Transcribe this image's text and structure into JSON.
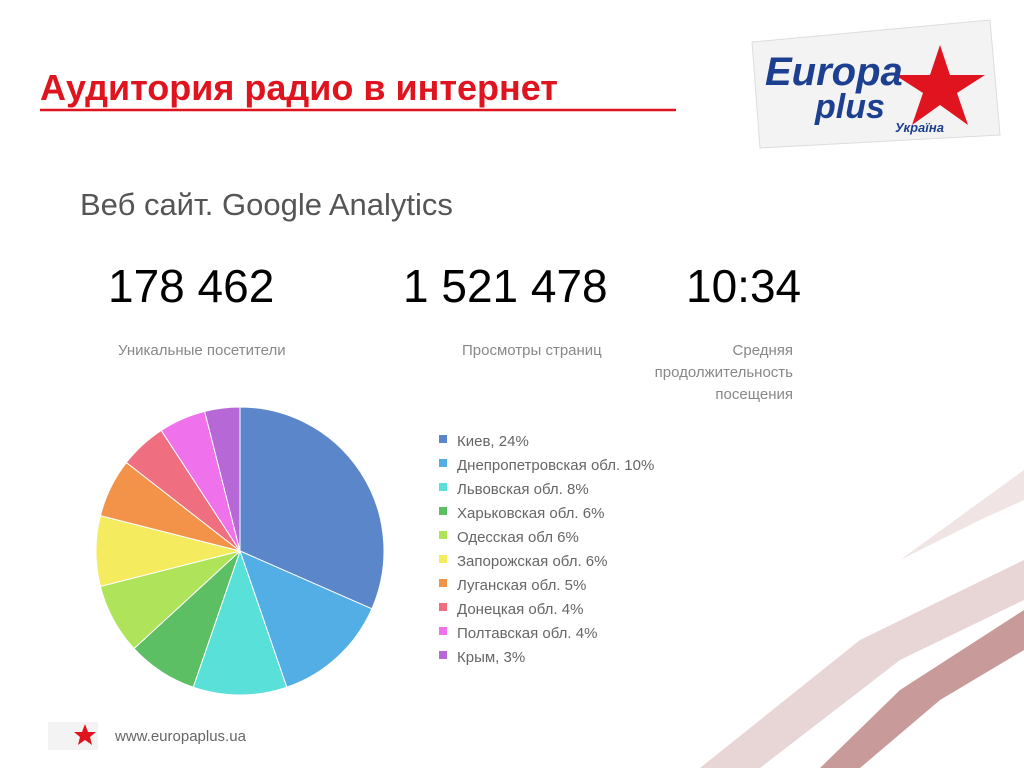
{
  "header": {
    "title": "Аудитория радио в интернет",
    "subtitle": "Веб сайт. Google Analytics"
  },
  "logo": {
    "line1": "Europa",
    "line2": "plus",
    "line3": "Україна"
  },
  "stats": [
    {
      "value": "178 462",
      "label": [
        "Уникальные посетители"
      ]
    },
    {
      "value": "1 521 478",
      "label": [
        "Просмотры страниц"
      ]
    },
    {
      "value": "10:34",
      "label": [
        "Средняя",
        "продолжительность",
        "посещения"
      ]
    }
  ],
  "chart_data": {
    "type": "pie",
    "categories": [
      "Киев, 24%",
      "Днепропетровская обл. 10%",
      "Львовская обл. 8%",
      "Харьковская обл. 6%",
      "Одесская обл 6%",
      "Запорожская обл. 6%",
      "Луганская обл. 5%",
      "Донецкая обл. 4%",
      "Полтавская обл. 4%",
      "Крым, 3%"
    ],
    "values": [
      24,
      10,
      8,
      6,
      6,
      6,
      5,
      4,
      4,
      3
    ],
    "colors": [
      "#5b86c9",
      "#54aee6",
      "#58e0d9",
      "#5cbf63",
      "#aee35a",
      "#f4ec5e",
      "#f3934a",
      "#ef6f80",
      "#f071ec",
      "#b568d6"
    ]
  },
  "footer": {
    "url": "www.europaplus.ua"
  }
}
